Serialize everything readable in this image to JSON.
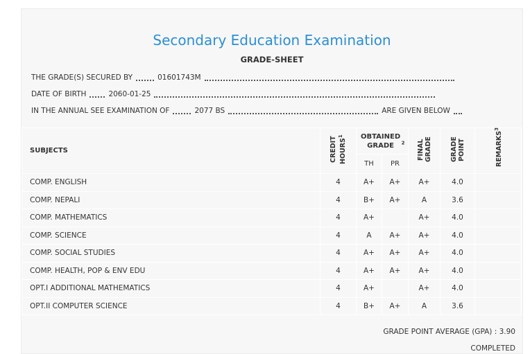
{
  "header": {
    "title": "Secondary Education Examination",
    "subtitle": "GRADE-SHEET"
  },
  "info": {
    "secured_by_label": "THE GRADE(S) SECURED BY",
    "secured_by": "01601743M",
    "dob_label": "DATE OF BIRTH",
    "dob": "2060-01-25",
    "exam_label": "IN THE ANNUAL SEE EXAMINATION OF",
    "exam": "2077 BS",
    "exam_suffix": "ARE GIVEN BELOW"
  },
  "table": {
    "columns": {
      "subjects": "SUBJECTS",
      "credit_hours": "CREDIT HOURS",
      "credit_hours_note": "1",
      "obtained_grade": "OBTAINED GRADE",
      "obtained_grade_note": "2",
      "th": "TH",
      "pr": "PR",
      "final_grade": "FINAL GRADE",
      "grade_point": "GRADE POINT",
      "remarks": "REMARKS",
      "remarks_note": "3"
    },
    "rows": [
      [
        "COMP. ENGLISH",
        4,
        "A+",
        "A+",
        "A+",
        "4.0"
      ],
      [
        "COMP. NEPALI",
        4,
        "B+",
        "A+",
        "A",
        "3.6"
      ],
      [
        "COMP. MATHEMATICS",
        4,
        "A+",
        null,
        "A+",
        "4.0"
      ],
      [
        "COMP. SCIENCE",
        4,
        "A",
        "A+",
        "A+",
        "4.0"
      ],
      [
        "COMP. SOCIAL STUDIES",
        4,
        "A+",
        "A+",
        "A+",
        "4.0"
      ],
      [
        "COMP. HEALTH, POP & ENV EDU",
        4,
        "A+",
        "A+",
        "A+",
        "4.0"
      ],
      [
        "OPT.I ADDITIONAL MATHEMATICS",
        4,
        "A+",
        null,
        "A+",
        "4.0"
      ],
      [
        "OPT.II COMPUTER SCIENCE",
        4,
        "B+",
        "A+",
        "A",
        "3.6"
      ]
    ]
  },
  "footer": {
    "gpa_label": "GRADE POINT AVERAGE (GPA) :",
    "gpa": "3.90",
    "status": "COMPLETED"
  }
}
